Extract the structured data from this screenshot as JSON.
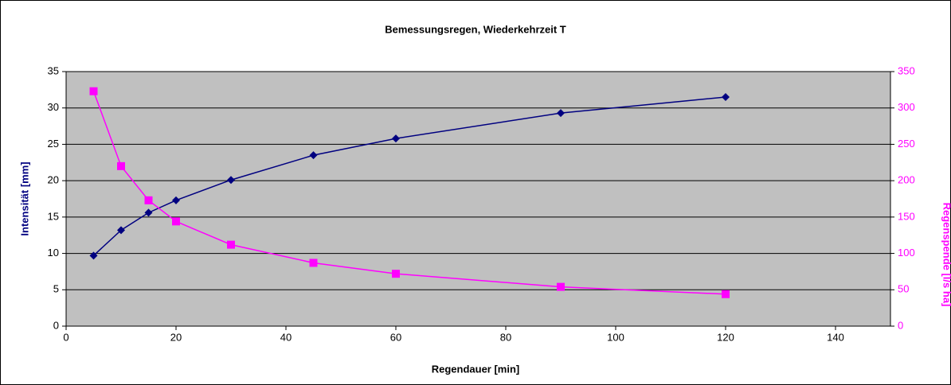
{
  "chart_data": {
    "type": "line",
    "title": "Bemessungsregen, Wiederkehrzeit T",
    "x_label": "Regendauer [min]",
    "y_label": "Intensität [mm]",
    "y2_label": "Regenspende [l/s ha]",
    "x": [
      5,
      10,
      15,
      20,
      30,
      45,
      60,
      90,
      120
    ],
    "series": [
      {
        "name": "Intensität",
        "color": "#000080",
        "marker": "diamond",
        "values": [
          9.7,
          13.2,
          15.6,
          17.3,
          20.1,
          23.5,
          25.8,
          29.3,
          31.5
        ]
      },
      {
        "name": "Regenspende",
        "color": "#ff00ff",
        "marker": "square",
        "axis": "y2",
        "values": [
          323,
          220,
          173,
          144,
          112,
          87,
          72,
          54,
          44
        ]
      }
    ],
    "xlim": [
      0,
      150
    ],
    "xticks": [
      0,
      20,
      40,
      60,
      80,
      100,
      120,
      140
    ],
    "ylim": [
      0,
      35
    ],
    "yticks": [
      0,
      5,
      10,
      15,
      20,
      25,
      30,
      35
    ],
    "y2lim": [
      0,
      350
    ],
    "y2ticks": [
      0,
      50,
      100,
      150,
      200,
      250,
      300,
      350
    ],
    "grid": true,
    "plot_background": "#c0c0c0"
  }
}
